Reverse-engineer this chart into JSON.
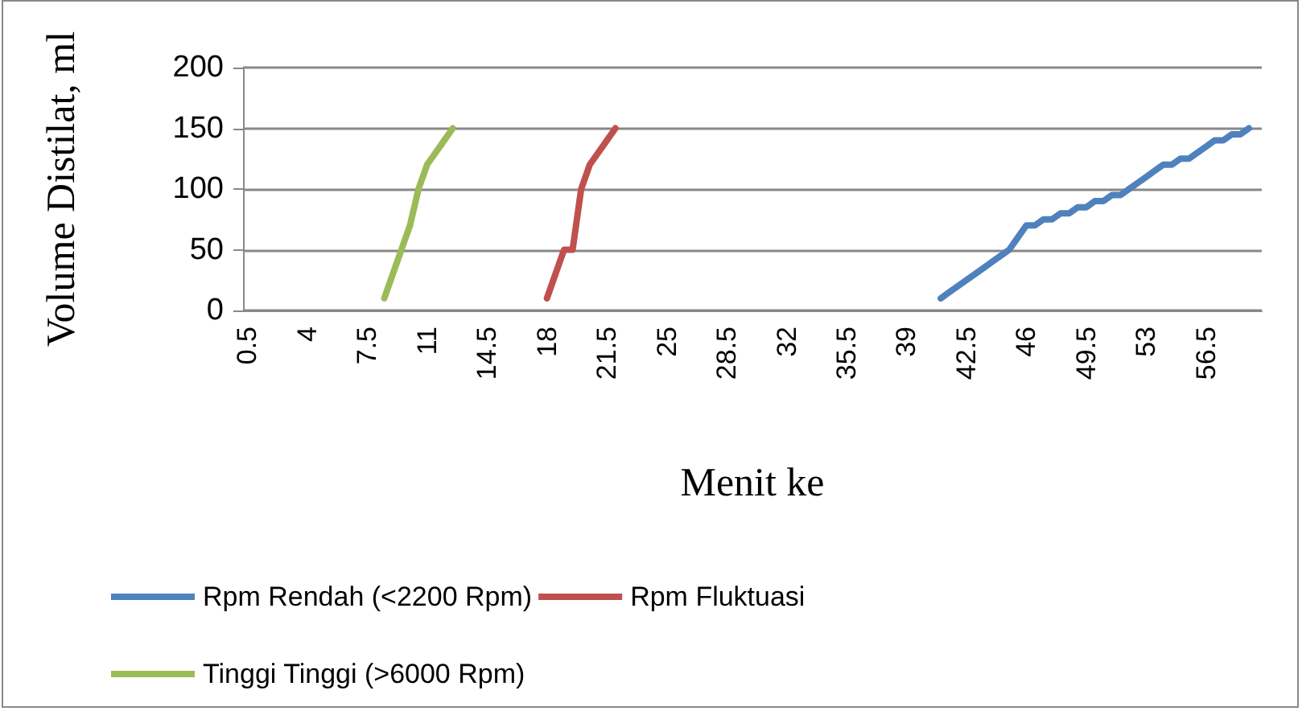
{
  "chart_data": {
    "type": "line",
    "xlabel": "Menit ke",
    "ylabel": "Volume Distilat, ml",
    "categories": [
      "0.5",
      null,
      null,
      null,
      null,
      null,
      null,
      "4",
      null,
      null,
      null,
      null,
      null,
      null,
      "7.5",
      null,
      null,
      null,
      null,
      null,
      null,
      "11",
      null,
      null,
      null,
      null,
      null,
      null,
      "14.5",
      null,
      null,
      null,
      null,
      null,
      null,
      "18",
      null,
      null,
      null,
      null,
      null,
      null,
      "21.5",
      null,
      null,
      null,
      null,
      null,
      null,
      "25",
      null,
      null,
      null,
      null,
      null,
      null,
      "28.5",
      null,
      null,
      null,
      null,
      null,
      null,
      "32",
      null,
      null,
      null,
      null,
      null,
      null,
      "35.5",
      null,
      null,
      null,
      null,
      null,
      null,
      "39",
      null,
      null,
      null,
      null,
      null,
      null,
      "42.5",
      null,
      null,
      null,
      null,
      null,
      null,
      "46",
      null,
      null,
      null,
      null,
      null,
      null,
      "49.5",
      null,
      null,
      null,
      null,
      null,
      null,
      "53",
      null,
      null,
      null,
      null,
      null,
      null,
      "56.5",
      null,
      null,
      null,
      null,
      null,
      null
    ],
    "series": [
      {
        "name": "Rpm Rendah (<2200 Rpm)",
        "color": "#4f81bd",
        "values": [
          null,
          null,
          null,
          null,
          null,
          null,
          null,
          null,
          null,
          null,
          null,
          null,
          null,
          null,
          null,
          null,
          null,
          null,
          null,
          null,
          null,
          null,
          null,
          null,
          null,
          null,
          null,
          null,
          null,
          null,
          null,
          null,
          null,
          null,
          null,
          null,
          null,
          null,
          null,
          null,
          null,
          null,
          null,
          null,
          null,
          null,
          null,
          null,
          null,
          null,
          null,
          null,
          null,
          null,
          null,
          null,
          null,
          null,
          null,
          null,
          null,
          null,
          null,
          null,
          null,
          null,
          null,
          null,
          null,
          null,
          null,
          null,
          null,
          null,
          null,
          null,
          null,
          null,
          null,
          null,
          null,
          10,
          15,
          20,
          25,
          30,
          35,
          40,
          45,
          50,
          60,
          70,
          70,
          75,
          75,
          80,
          80,
          85,
          85,
          90,
          90,
          95,
          95,
          100,
          105,
          110,
          115,
          120,
          120,
          125,
          125,
          130,
          135,
          140,
          140,
          145,
          145,
          150,
          null
        ]
      },
      {
        "name": "Rpm Fluktuasi",
        "color": "#c0504d",
        "values": [
          null,
          null,
          null,
          null,
          null,
          null,
          null,
          null,
          null,
          null,
          null,
          null,
          null,
          null,
          null,
          null,
          null,
          null,
          null,
          null,
          null,
          null,
          null,
          null,
          null,
          null,
          null,
          null,
          null,
          null,
          null,
          null,
          null,
          null,
          null,
          10,
          30,
          50,
          50,
          100,
          120,
          130,
          140,
          150,
          null,
          null,
          null,
          null,
          null,
          null,
          null,
          null,
          null,
          null,
          null,
          null,
          null,
          null,
          null,
          null,
          null,
          null,
          null,
          null,
          null,
          null,
          null,
          null,
          null,
          null,
          null,
          null,
          null,
          null,
          null,
          null,
          null,
          null,
          null,
          null,
          null,
          null,
          null,
          null,
          null,
          null,
          null,
          null,
          null,
          null,
          null,
          null,
          null,
          null,
          null,
          null,
          null,
          null,
          null,
          null,
          null,
          null,
          null,
          null,
          null,
          null,
          null,
          null,
          null,
          null,
          null,
          null,
          null,
          null,
          null,
          null,
          null,
          null,
          null
        ]
      },
      {
        "name": "Tinggi Tinggi (>6000 Rpm)",
        "color": "#9bbb59",
        "values": [
          null,
          null,
          null,
          null,
          null,
          null,
          null,
          null,
          null,
          null,
          null,
          null,
          null,
          null,
          null,
          null,
          10,
          30,
          50,
          70,
          100,
          120,
          130,
          140,
          150,
          null,
          null,
          null,
          null,
          null,
          null,
          null,
          null,
          null,
          null,
          null,
          null,
          null,
          null,
          null,
          null,
          null,
          null,
          null,
          null,
          null,
          null,
          null,
          null,
          null,
          null,
          null,
          null,
          null,
          null,
          null,
          null,
          null,
          null,
          null,
          null,
          null,
          null,
          null,
          null,
          null,
          null,
          null,
          null,
          null,
          null,
          null,
          null,
          null,
          null,
          null,
          null,
          null,
          null,
          null,
          null,
          null,
          null,
          null,
          null,
          null,
          null,
          null,
          null,
          null,
          null,
          null,
          null,
          null,
          null,
          null,
          null,
          null,
          null,
          null,
          null,
          null,
          null,
          null,
          null,
          null,
          null,
          null,
          null,
          null,
          null,
          null,
          null,
          null,
          null,
          null,
          null,
          null,
          null
        ]
      }
    ],
    "ylim": [
      0,
      200
    ],
    "yticks": [
      0,
      50,
      100,
      150,
      200
    ],
    "grid": "y",
    "legend": "bottom",
    "marker": "none",
    "line_style": "solid"
  }
}
